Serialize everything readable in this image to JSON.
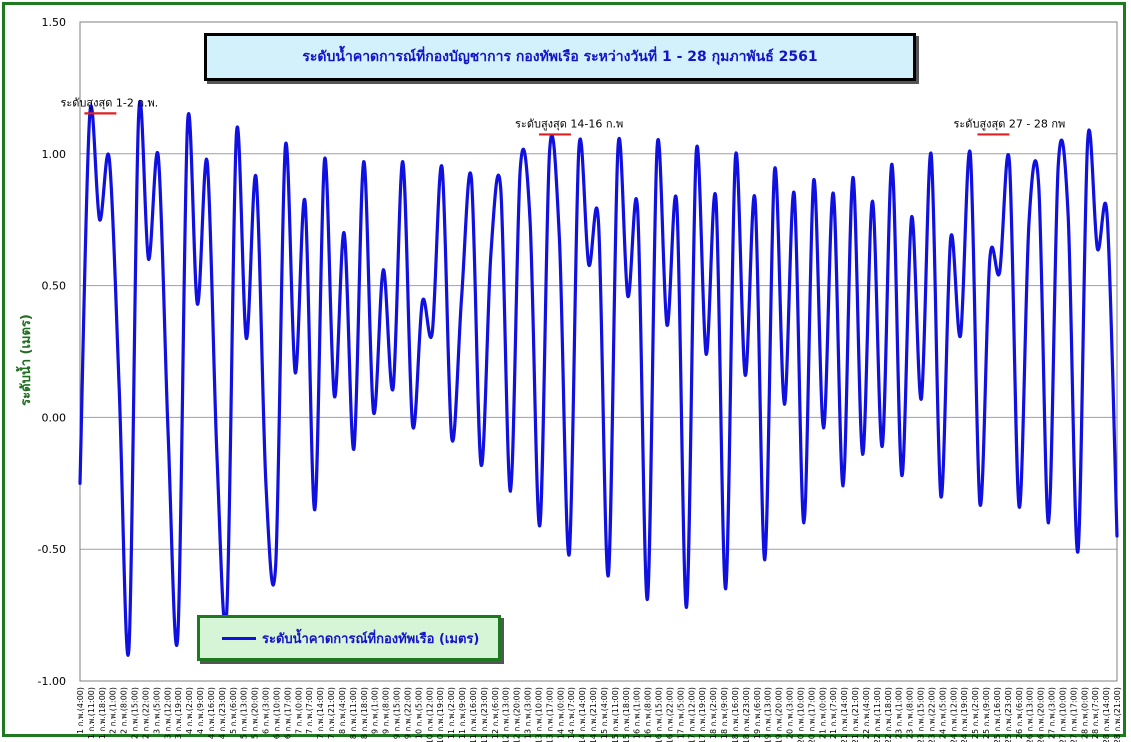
{
  "chart_data": {
    "type": "line",
    "title": "ระดับน้ำคาดการณ์ที่กองบัญชาการ กองทัพเรือ  ระหว่างวันที่ 1 - 28 กุมภาพันธ์ 2561",
    "ylabel": "ระดับน้ำ (เมตร)",
    "xlabel": "",
    "ylim": [
      -1.0,
      1.5
    ],
    "yticks": [
      "1.50",
      "1.00",
      "0.50",
      "0.00",
      "-0.50",
      "-1.00"
    ],
    "grid": true,
    "legend_placement": "bottom-left",
    "line_color": "#1010e0",
    "series": [
      {
        "name": "ระดับน้ำคาดการณ์ที่กองทัพเรือ (เมตร)",
        "values": [
          -0.25,
          1.15,
          0.75,
          0.98,
          0.12,
          -0.88,
          1.15,
          0.6,
          0.99,
          -0.05,
          -0.83,
          1.12,
          0.43,
          0.97,
          -0.15,
          -0.74,
          1.08,
          0.3,
          0.91,
          -0.25,
          -0.56,
          1.03,
          0.17,
          0.82,
          -0.35,
          0.98,
          0.08,
          0.7,
          -0.12,
          0.97,
          0.02,
          0.56,
          0.11,
          0.97,
          -0.03,
          0.44,
          0.32,
          0.95,
          -0.08,
          0.45,
          0.91,
          -0.18,
          0.62,
          0.87,
          -0.28,
          0.94,
          0.75,
          -0.41,
          1.01,
          0.68,
          -0.52,
          1.02,
          0.58,
          0.74,
          -0.6,
          1.03,
          0.46,
          0.79,
          -0.69,
          1.03,
          0.35,
          0.81,
          -0.72,
          1.01,
          0.24,
          0.83,
          -0.65,
          0.99,
          0.16,
          0.83,
          -0.54,
          0.94,
          0.05,
          0.85,
          -0.4,
          0.9,
          -0.04,
          0.85,
          -0.26,
          0.91,
          -0.14,
          0.82,
          -0.11,
          0.96,
          -0.22,
          0.76,
          0.07,
          1.0,
          -0.3,
          0.68,
          0.31,
          1.0,
          -0.33,
          0.6,
          0.55,
          0.97,
          -0.34,
          0.74,
          0.88,
          -0.4,
          0.96,
          0.77,
          -0.51,
          1.05,
          0.64,
          0.76,
          -0.45
        ]
      }
    ],
    "x_tick_labels": [
      "1 ก.พ.(4:00)",
      "1 ก.พ.(11:00)",
      "1 ก.พ.(18:00)",
      "2 ก.พ.(1:00)",
      "2 ก.พ.(8:00)",
      "2 ก.พ.(15:00)",
      "2 ก.พ.(22:00)",
      "3 ก.พ.(5:00)",
      "3 ก.พ.(12:00)",
      "3 ก.พ.(19:00)",
      "4 ก.พ.(2:00)",
      "4 ก.พ.(9:00)",
      "4 ก.พ.(16:00)",
      "4 ก.พ.(23:00)",
      "5 ก.พ.(6:00)",
      "5 ก.พ.(13:00)",
      "5 ก.พ.(20:00)",
      "6 ก.พ.(3:00)",
      "6 ก.พ.(10:00)",
      "6 ก.พ.(17:00)",
      "7 ก.พ.(0:00)",
      "7 ก.พ.(7:00)",
      "7 ก.พ.(14:00)",
      "7 ก.พ.(21:00)",
      "8 ก.พ.(4:00)",
      "8 ก.พ.(11:00)",
      "8 ก.พ.(18:00)",
      "9 ก.พ.(1:00)",
      "9 ก.พ.(8:00)",
      "9 ก.พ.(15:00)",
      "9 ก.พ.(22:00)",
      "10 ก.พ.(5:00)",
      "10 ก.พ.(12:00)",
      "10 ก.พ.(19:00)",
      "11 ก.พ.(2:00)",
      "11 ก.พ.(9:00)",
      "11 ก.พ.(16:00)",
      "11 ก.พ.(23:00)",
      "12 ก.พ.(6:00)",
      "12 ก.พ.(13:00)",
      "12 ก.พ.(20:00)",
      "13 ก.พ.(3:00)",
      "13 ก.พ.(10:00)",
      "13 ก.พ.(17:00)",
      "14 ก.พ.(0:00)",
      "14 ก.พ.(7:00)",
      "14 ก.พ.(14:00)",
      "14 ก.พ.(21:00)",
      "15 ก.พ.(4:00)",
      "15 ก.พ.(11:00)",
      "15 ก.พ.(18:00)",
      "16 ก.พ.(1:00)",
      "16 ก.พ.(8:00)",
      "16 ก.พ.(15:00)",
      "16 ก.พ.(22:00)",
      "17 ก.พ.(5:00)",
      "17 ก.พ.(12:00)",
      "17 ก.พ.(19:00)",
      "18 ก.พ.(2:00)",
      "18 ก.พ.(9:00)",
      "18 ก.พ.(16:00)",
      "18 ก.พ.(23:00)",
      "19 ก.พ.(6:00)",
      "19 ก.พ.(13:00)",
      "19 ก.พ.(20:00)",
      "20 ก.พ.(3:00)",
      "20 ก.พ.(10:00)",
      "20 ก.พ.(17:00)",
      "21 ก.พ.(0:00)",
      "21 ก.พ.(7:00)",
      "21 ก.พ.(14:00)",
      "21 ก.พ.(21:00)",
      "22 ก.พ.(4:00)",
      "22 ก.พ.(11:00)",
      "22 ก.พ.(18:00)",
      "23 ก.พ.(1:00)",
      "23 ก.พ.(8:00)",
      "23 ก.พ.(15:00)",
      "23 ก.พ.(22:00)",
      "24 ก.พ.(5:00)",
      "24 ก.พ.(12:00)",
      "24 ก.พ.(19:00)",
      "25 ก.พ.(2:00)",
      "25 ก.พ.(9:00)",
      "25 ก.พ.(16:00)",
      "25 ก.พ.(23:00)",
      "26 ก.พ.(6:00)",
      "26 ก.พ.(13:00)",
      "26 ก.พ.(20:00)",
      "27 ก.พ.(3:00)",
      "27 ก.พ.(10:00)",
      "27 ก.พ.(17:00)",
      "28 ก.พ.(0:00)",
      "28 ก.พ.(7:00)",
      "28 ก.พ.(14:00)",
      "28 ก.พ.(21:00)"
    ],
    "annotations": [
      {
        "prefix": "ระดับ",
        "underlined": "สูงสุด",
        "suffix": " 1-2 ก.พ.",
        "x_index": 3,
        "y": 1.18
      },
      {
        "prefix": "ระดับ",
        "underlined": "สูงสุด",
        "suffix": " 14-16 ก.พ",
        "x_index": 50,
        "y": 1.1
      },
      {
        "prefix": "ระดับ",
        "underlined": "สูงสุด",
        "suffix": " 27 - 28 กพ",
        "x_index": 95,
        "y": 1.1
      }
    ],
    "annotation_underline_color": "#e02020"
  }
}
